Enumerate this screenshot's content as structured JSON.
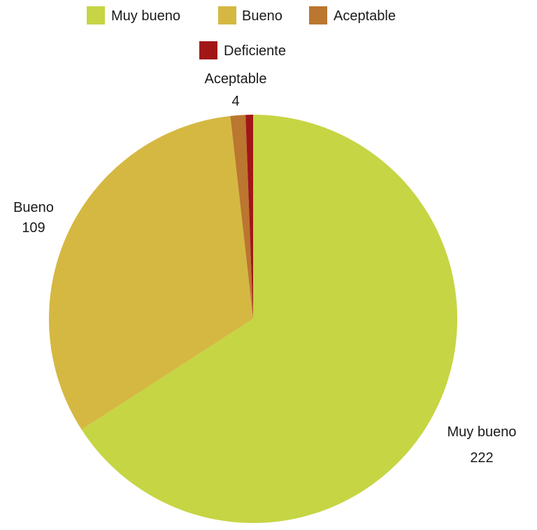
{
  "chart_data": {
    "type": "pie",
    "categories": [
      "Muy bueno",
      "Bueno",
      "Aceptable",
      "Deficiente"
    ],
    "values": [
      222,
      109,
      4,
      2
    ],
    "colors": [
      "#c6d543",
      "#d5b842",
      "#bb762f",
      "#a11717"
    ],
    "data_labels": [
      {
        "category": "Aceptable",
        "value": "4"
      },
      {
        "category": "Bueno",
        "value": "109"
      },
      {
        "category": "Muy bueno",
        "value": "222"
      }
    ],
    "legend": {
      "placement": "top",
      "entries": [
        "Muy bueno",
        "Bueno",
        "Aceptable",
        "Deficiente"
      ]
    },
    "start_angle_deg": 0,
    "direction": "clockwise"
  }
}
